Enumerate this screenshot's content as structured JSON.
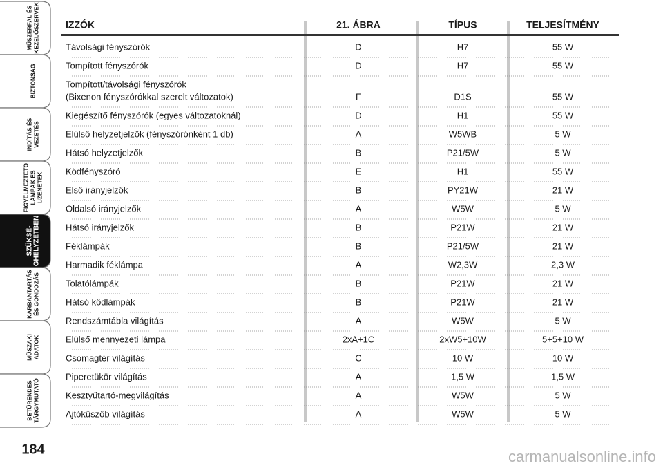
{
  "sidebar": {
    "tabs": [
      {
        "lines": [
          "MŰSZERFAL ÉS",
          "KEZELŐSZERVEK"
        ],
        "active": false
      },
      {
        "lines": [
          "BIZTONSÁG"
        ],
        "active": false
      },
      {
        "lines": [
          "INDÍTÁS ÉS",
          "VEZETÉS"
        ],
        "active": false
      },
      {
        "lines": [
          "FIGYELMEZTETŐ",
          "LÁMPÁK ÉS",
          "ÜZENETEK"
        ],
        "active": false
      },
      {
        "lines": [
          "SZÜKSÉ-",
          "GHELYZETBEN"
        ],
        "active": true
      },
      {
        "lines": [
          "KARBANTARTÁS",
          "ÉS GONDOZÁS"
        ],
        "active": false
      },
      {
        "lines": [
          "MŰSZAKI",
          "ADATOK"
        ],
        "active": false
      },
      {
        "lines": [
          "BETŰRENDES",
          "TÁRGYMUTATÓ"
        ],
        "active": false
      }
    ],
    "page_number": "184"
  },
  "table": {
    "headers": [
      "IZZÓK",
      "21. ÁBRA",
      "TÍPUS",
      "TELJESÍTMÉNY"
    ],
    "rows": [
      [
        "Távolsági fényszórók",
        "D",
        "H7",
        "55 W"
      ],
      [
        "Tompított fényszórók",
        "D",
        "H7",
        "55 W"
      ],
      [
        [
          "Tompított/távolsági fényszórók",
          "(Bixenon fényszórókkal szerelt változatok)"
        ],
        "F",
        "D1S",
        "55 W"
      ],
      [
        "Kiegészítő fényszórók (egyes változatoknál)",
        "D",
        "H1",
        "55 W"
      ],
      [
        "Elülső helyzetjelzők (fényszórónként 1 db)",
        "A",
        "W5WB",
        "5 W"
      ],
      [
        "Hátsó helyzetjelzők",
        "B",
        "P21/5W",
        "5 W"
      ],
      [
        "Ködfényszóró",
        "E",
        "H1",
        "55 W"
      ],
      [
        "Első irányjelzők",
        "B",
        "PY21W",
        "21 W"
      ],
      [
        "Oldalsó irányjelzők",
        "A",
        "W5W",
        "5 W"
      ],
      [
        "Hátsó irányjelzők",
        "B",
        "P21W",
        "21 W"
      ],
      [
        "Féklámpák",
        "B",
        "P21/5W",
        "21 W"
      ],
      [
        "Harmadik féklámpa",
        "A",
        "W2,3W",
        "2,3 W"
      ],
      [
        "Tolatólámpák",
        "B",
        "P21W",
        "21 W"
      ],
      [
        "Hátsó ködlámpák",
        "B",
        "P21W",
        "21 W"
      ],
      [
        "Rendszámtábla világítás",
        "A",
        "W5W",
        "5 W"
      ],
      [
        "Elülső mennyezeti lámpa",
        "2xA+1C",
        "2xW5+10W",
        "5+5+10 W"
      ],
      [
        "Csomagtér világítás",
        "C",
        "10 W",
        "10 W"
      ],
      [
        "Piperetükör világítás",
        "A",
        "1,5 W",
        "1,5 W"
      ],
      [
        "Kesztyűtartó-megvilágítás",
        "A",
        "W5W",
        "5 W"
      ],
      [
        "Ajtóküszöb világítás",
        "A",
        "W5W",
        "5 W"
      ]
    ]
  },
  "watermark": "carmanualsonline.info"
}
